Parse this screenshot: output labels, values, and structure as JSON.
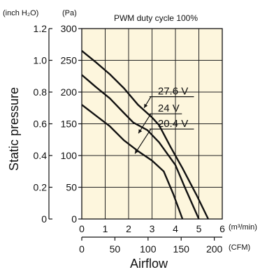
{
  "chart_data": {
    "type": "line",
    "title": "PWM duty cycle 100%",
    "ylabel": "Static pressure",
    "xlabel": "Airflow",
    "y_units_left": "(inch H₂O)",
    "y_units_right": "(Pa)",
    "x_units_top": "(m³/min)",
    "x_units_bottom": "(CFM)",
    "ylim_pa": [
      0,
      300
    ],
    "xlim_m3min": [
      0,
      6
    ],
    "xlim_cfm": [
      0,
      212
    ],
    "grid": true,
    "ticks": {
      "inch": [
        "0",
        "0.2",
        "0.4",
        "0.6",
        "0.8",
        "1.0",
        "1.2"
      ],
      "inch_values": [
        0,
        0.2,
        0.4,
        0.6,
        0.8,
        1.0,
        1.2
      ],
      "pa": [
        "0",
        "50",
        "100",
        "150",
        "200",
        "250",
        "300"
      ],
      "pa_values": [
        0,
        50,
        100,
        150,
        200,
        250,
        300
      ],
      "m3": [
        "0",
        "1",
        "2",
        "3",
        "4",
        "5",
        "6"
      ],
      "m3_values": [
        0,
        1,
        2,
        3,
        4,
        5,
        6
      ],
      "cfm": [
        "0",
        "50",
        "100",
        "150",
        "200"
      ],
      "cfm_values": [
        0,
        50,
        100,
        150,
        200
      ]
    },
    "series": [
      {
        "name": "27.6 V",
        "x": [
          0,
          0.6,
          1.2,
          1.8,
          2.4,
          3.0,
          3.3,
          3.8,
          4.3,
          4.9,
          5.4
        ],
        "y": [
          265,
          247,
          228,
          206,
          180,
          160,
          148,
          113,
          80,
          38,
          0
        ]
      },
      {
        "name": "24 V",
        "x": [
          0,
          0.6,
          1.2,
          1.8,
          2.2,
          2.8,
          3.3,
          4.0,
          4.4,
          5.0
        ],
        "y": [
          227,
          208,
          190,
          167,
          152,
          140,
          121,
          85,
          50,
          0
        ]
      },
      {
        "name": "20.4 V",
        "x": [
          0,
          0.6,
          1.2,
          1.8,
          2.4,
          3.0,
          3.5,
          3.9,
          4.3
        ],
        "y": [
          180,
          163,
          146,
          124,
          107,
          92,
          75,
          40,
          0
        ]
      }
    ],
    "labels": [
      {
        "text": "27.6 V",
        "x": 3.25,
        "y": 196,
        "pointer": {
          "x": 2.66,
          "y": 175
        }
      },
      {
        "text": "24 V",
        "x": 3.25,
        "y": 169,
        "pointer": {
          "x": 2.42,
          "y": 135
        }
      },
      {
        "text": "20.4 V",
        "x": 3.25,
        "y": 145,
        "pointer": {
          "x": 2.27,
          "y": 103
        }
      }
    ]
  }
}
